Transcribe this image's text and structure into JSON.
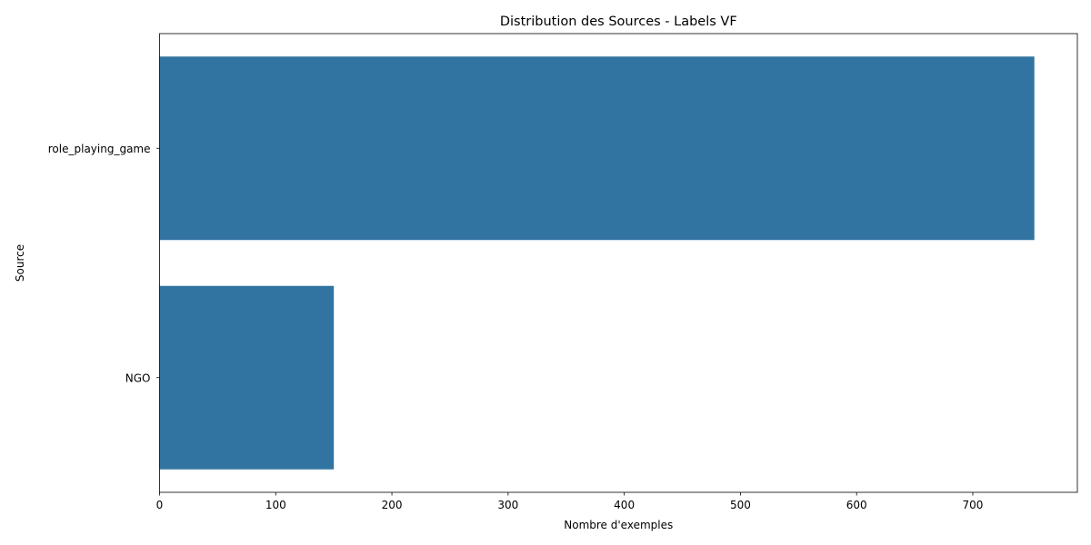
{
  "chart_data": {
    "type": "bar",
    "orientation": "horizontal",
    "title": "Distribution des Sources - Labels VF",
    "xlabel": "Nombre d'exemples",
    "ylabel": "Source",
    "categories": [
      "role_playing_game",
      "NGO"
    ],
    "values": [
      753,
      150
    ],
    "xlim": [
      0,
      790
    ],
    "xticks": [
      0,
      100,
      200,
      300,
      400,
      500,
      600,
      700
    ],
    "grid": false,
    "legend": "none",
    "bar_color": "#3274a1"
  }
}
